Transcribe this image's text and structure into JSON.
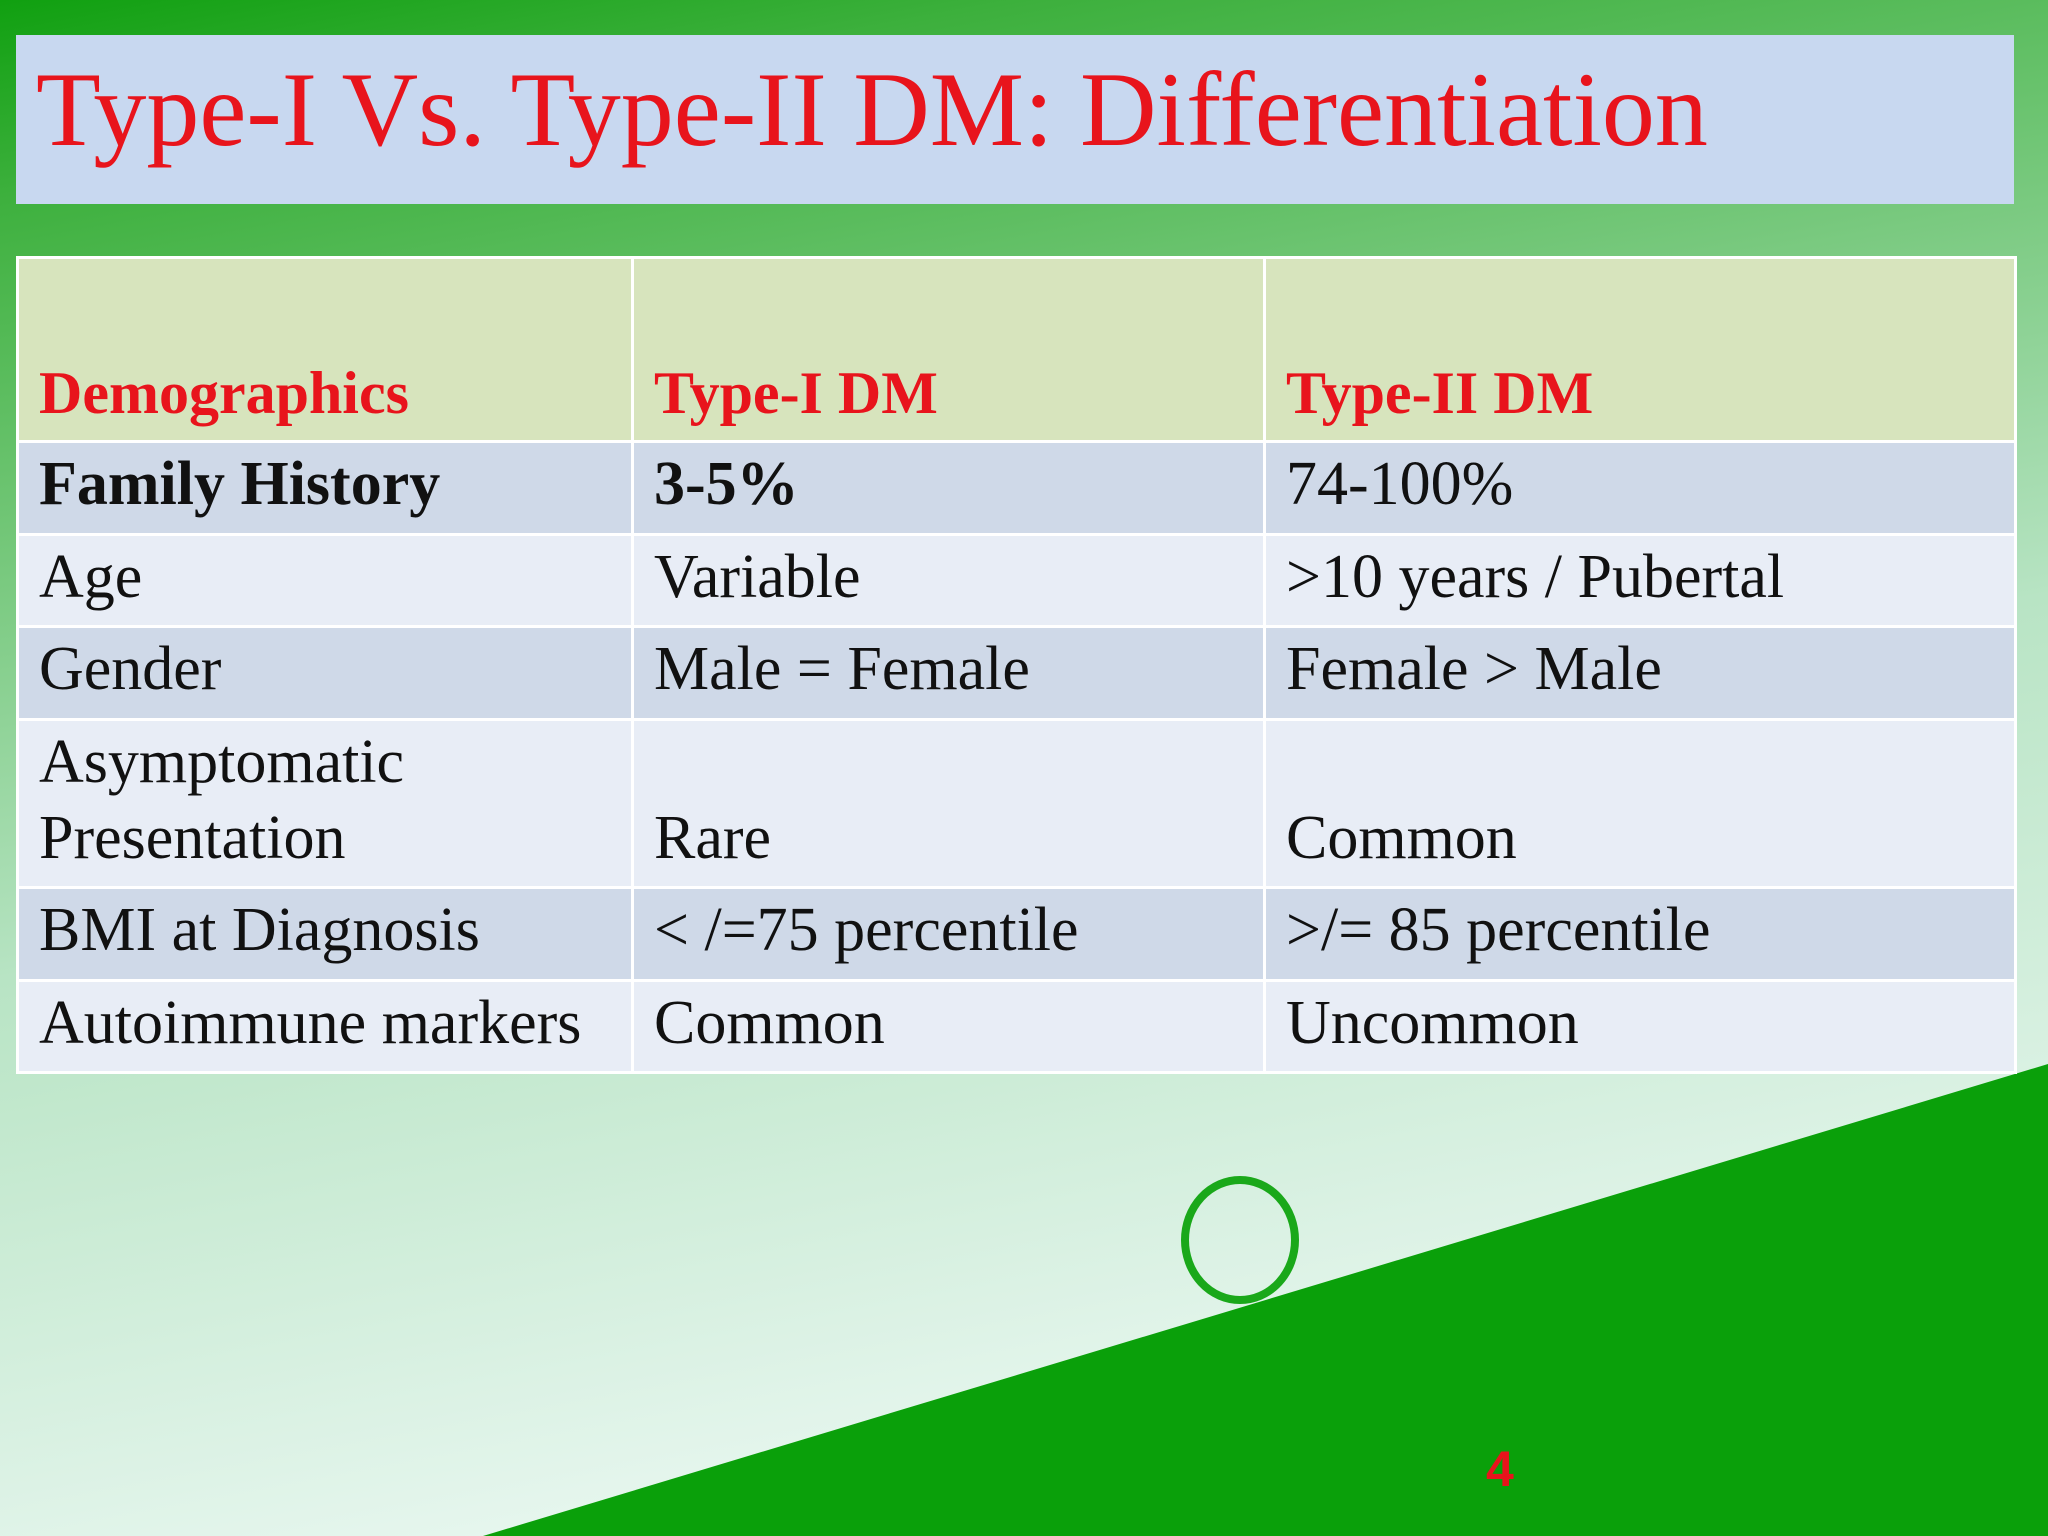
{
  "title": "Type-I Vs. Type-II DM: Differentiation",
  "table": {
    "header": [
      "Demographics",
      "Type-I DM",
      "Type-II DM"
    ],
    "rows": [
      [
        "Family History",
        "3-5%",
        "74-100%"
      ],
      [
        "Age",
        "Variable",
        ">10 years / Pubertal"
      ],
      [
        "Gender",
        "Male = Female",
        "Female > Male"
      ],
      [
        "Asymptomatic Presentation",
        "Rare",
        "Common"
      ],
      [
        "BMI at Diagnosis",
        "< /=75 percentile",
        ">/= 85 percentile"
      ],
      [
        "Autoimmune markers",
        "Common",
        "Uncommon"
      ]
    ]
  },
  "page_number": "4"
}
